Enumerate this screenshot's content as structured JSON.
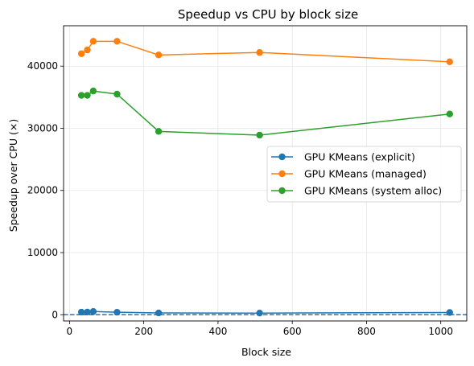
{
  "chart_data": {
    "type": "line",
    "title": "Speedup vs CPU by block size",
    "xlabel": "Block size",
    "ylabel": "Speedup over CPU (×)",
    "xlim": [
      -16,
      1070
    ],
    "ylim": [
      -1000,
      46500
    ],
    "xticks": [
      0,
      200,
      400,
      600,
      800,
      1000
    ],
    "yticks": [
      0,
      10000,
      20000,
      30000,
      40000
    ],
    "grid": true,
    "legend_position": "center-right",
    "reference_line": {
      "y": 1,
      "style": "dashed",
      "color": "#1f77b4"
    },
    "x": [
      32,
      48,
      64,
      128,
      240,
      512,
      1024
    ],
    "series": [
      {
        "name": "GPU KMeans (explicit)",
        "color": "#1f77b4",
        "values": [
          420,
          430,
          520,
          400,
          290,
          270,
          360
        ]
      },
      {
        "name": "GPU KMeans (managed)",
        "color": "#ff7f0e",
        "values": [
          42000,
          42600,
          44000,
          44000,
          41800,
          42200,
          40700
        ]
      },
      {
        "name": "GPU KMeans (system alloc)",
        "color": "#2ca02c",
        "values": [
          35300,
          35300,
          36000,
          35500,
          29500,
          28900,
          32300
        ]
      }
    ]
  }
}
